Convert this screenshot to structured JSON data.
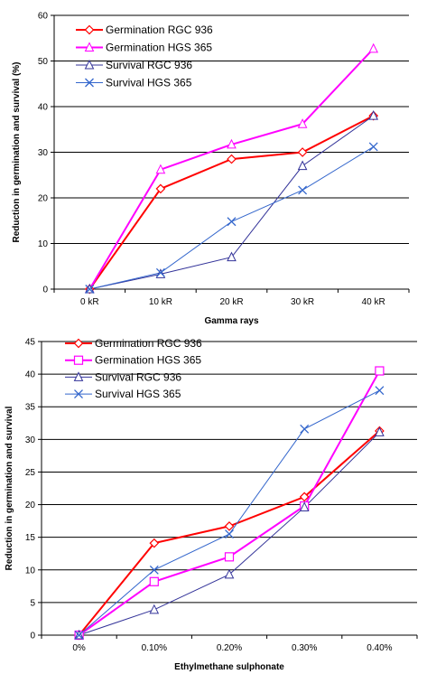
{
  "chart_data": [
    {
      "type": "line",
      "categories": [
        "0 kR",
        "10 kR",
        "20 kR",
        "30 kR",
        "40 kR"
      ],
      "xlabel": "Gamma rays",
      "ylabel": "Reduction in germination and survival (%)",
      "ylim": [
        0,
        60
      ],
      "yticks": [
        0,
        10,
        20,
        30,
        40,
        50,
        60
      ],
      "grid": "horizontal",
      "legend_position": "top-left",
      "series": [
        {
          "name": "Germination RGC 936",
          "values": [
            0,
            22,
            28.5,
            30,
            38
          ],
          "color": "#ff0000",
          "marker": "diamond"
        },
        {
          "name": "Germination HGS 365",
          "values": [
            0,
            26.2,
            31.7,
            36.2,
            52.7
          ],
          "color": "#ff00ff",
          "marker": "triangle"
        },
        {
          "name": "Survival RGC 936",
          "values": [
            0,
            3.3,
            7,
            27,
            38
          ],
          "color": "#333399",
          "marker": "triangle"
        },
        {
          "name": "Survival HGS 365",
          "values": [
            0,
            3.6,
            14.8,
            21.7,
            31.2
          ],
          "color": "#3366cc",
          "marker": "x"
        }
      ]
    },
    {
      "type": "line",
      "categories": [
        "0%",
        "0.10%",
        "0.20%",
        "0.30%",
        "0.40%"
      ],
      "xlabel": "Ethylmethane sulphonate",
      "ylabel": "Reduction in germination and survival",
      "ylim": [
        0,
        45
      ],
      "yticks": [
        0,
        5,
        10,
        15,
        20,
        25,
        30,
        35,
        40,
        45
      ],
      "grid": "horizontal",
      "legend_position": "top-left",
      "series": [
        {
          "name": "Germination RGC 936",
          "values": [
            0,
            14.1,
            16.7,
            21.2,
            31.3
          ],
          "color": "#ff0000",
          "marker": "diamond"
        },
        {
          "name": "Germination HGS 365",
          "values": [
            0,
            8.2,
            12,
            19.8,
            40.5
          ],
          "color": "#ff00ff",
          "marker": "square"
        },
        {
          "name": "Survival RGC 936",
          "values": [
            0,
            3.9,
            9.3,
            19.6,
            31.1
          ],
          "color": "#333399",
          "marker": "triangle"
        },
        {
          "name": "Survival HGS 365",
          "values": [
            0,
            10,
            15.5,
            31.6,
            37.5
          ],
          "color": "#3366cc",
          "marker": "x"
        }
      ]
    }
  ]
}
